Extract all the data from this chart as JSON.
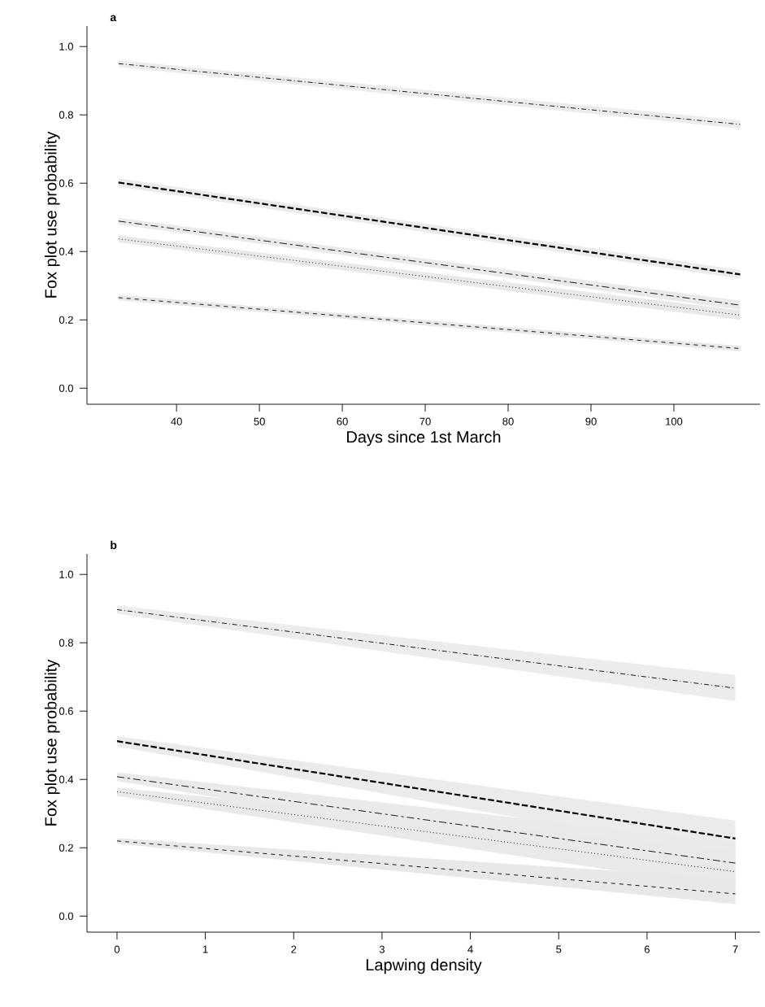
{
  "chart_data": [
    {
      "type": "line",
      "title": "a",
      "xlabel": "Days since 1st March",
      "ylabel": "Fox plot use probability",
      "xlim": [
        29.2,
        110.4
      ],
      "ylim": [
        -0.047,
        1.06
      ],
      "xticks": [
        40,
        50,
        60,
        70,
        80,
        90,
        100
      ],
      "yticks": [
        {
          "value": 0,
          "label": "0.0"
        },
        {
          "value": 0.2,
          "label": "0.2"
        },
        {
          "value": 0.4,
          "label": "0.4"
        },
        {
          "value": 0.6,
          "label": "0.6"
        },
        {
          "value": 0.8,
          "label": "0.8"
        },
        {
          "value": 1,
          "label": "1.0"
        }
      ],
      "marker": "none",
      "series": [
        {
          "color": "#000000",
          "line_style": "dashdot",
          "x": [
            33,
            108
          ],
          "values": [
            0.95,
            0.772
          ],
          "lower": [
            0.94,
            0.76
          ],
          "upper": [
            0.96,
            0.784
          ]
        },
        {
          "color": "#000000",
          "line_style": "dashed",
          "x": [
            33,
            108
          ],
          "values": [
            0.602,
            0.333
          ],
          "lower": [
            0.59,
            0.32
          ],
          "upper": [
            0.614,
            0.346
          ]
        },
        {
          "color": "#000000",
          "line_style": "dashed",
          "x": [
            33,
            108
          ],
          "values": [
            0.489,
            0.243
          ],
          "lower": [
            0.479,
            0.23
          ],
          "upper": [
            0.499,
            0.256
          ]
        },
        {
          "color": "#000000",
          "line_style": "dotted",
          "x": [
            33,
            108
          ],
          "values": [
            0.437,
            0.214
          ],
          "lower": [
            0.427,
            0.2
          ],
          "upper": [
            0.447,
            0.228
          ]
        },
        {
          "color": "#000000",
          "line_style": "dashed",
          "x": [
            33,
            108
          ],
          "values": [
            0.265,
            0.116
          ],
          "lower": [
            0.257,
            0.108
          ],
          "upper": [
            0.273,
            0.124
          ]
        }
      ]
    },
    {
      "type": "line",
      "title": "b",
      "xlabel": "Lapwing density",
      "ylabel": "Fox plot use probability",
      "xlim": [
        -0.34,
        7.28
      ],
      "ylim": [
        -0.047,
        1.06
      ],
      "xticks": [
        0,
        1,
        2,
        3,
        4,
        5,
        6,
        7
      ],
      "yticks": [
        {
          "value": 0,
          "label": "0.0"
        },
        {
          "value": 0.2,
          "label": "0.2"
        },
        {
          "value": 0.4,
          "label": "0.4"
        },
        {
          "value": 0.6,
          "label": "0.6"
        },
        {
          "value": 0.8,
          "label": "0.8"
        },
        {
          "value": 1,
          "label": "1.0"
        }
      ],
      "marker": "none",
      "series": [
        {
          "color": "#000000",
          "line_style": "dashdot",
          "x": [
            0,
            7
          ],
          "values": [
            0.897,
            0.667
          ],
          "lower": [
            0.885,
            0.629
          ],
          "upper": [
            0.909,
            0.706
          ]
        },
        {
          "color": "#000000",
          "line_style": "dashed",
          "x": [
            0,
            7
          ],
          "values": [
            0.512,
            0.227
          ],
          "lower": [
            0.497,
            0.175
          ],
          "upper": [
            0.527,
            0.28
          ]
        },
        {
          "color": "#000000",
          "line_style": "dashed",
          "x": [
            0,
            7
          ],
          "values": [
            0.408,
            0.155
          ],
          "lower": [
            0.395,
            0.1
          ],
          "upper": [
            0.421,
            0.215
          ]
        },
        {
          "color": "#000000",
          "line_style": "dotted",
          "x": [
            0,
            7
          ],
          "values": [
            0.364,
            0.13
          ],
          "lower": [
            0.352,
            0.08
          ],
          "upper": [
            0.376,
            0.19
          ]
        },
        {
          "color": "#000000",
          "line_style": "dashed",
          "x": [
            0,
            7
          ],
          "values": [
            0.22,
            0.065
          ],
          "lower": [
            0.212,
            0.035
          ],
          "upper": [
            0.228,
            0.11
          ]
        }
      ]
    }
  ]
}
